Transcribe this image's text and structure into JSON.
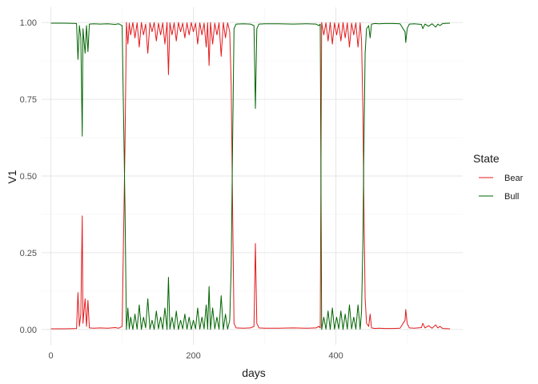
{
  "chart_data": {
    "type": "line",
    "xlabel": "days",
    "ylabel": "V1",
    "xlim": [
      -13,
      578
    ],
    "ylim": [
      -0.05,
      1.05
    ],
    "x_ticks": [
      0,
      200,
      400
    ],
    "x_tick_labels": [
      "0",
      "200",
      "400"
    ],
    "y_ticks": [
      0,
      0.25,
      0.5,
      0.75,
      1
    ],
    "y_tick_labels": [
      "0.00",
      "0.25",
      "0.50",
      "0.75",
      "1.00"
    ],
    "grid": true,
    "legend": {
      "title": "State",
      "position": "right",
      "entries": [
        {
          "label": "Bear",
          "color": "#e31a1c"
        },
        {
          "label": "Bull",
          "color": "#006400"
        }
      ]
    },
    "series": [
      {
        "name": "Bear",
        "color": "#e31a1c",
        "points": [
          [
            0,
            0.002
          ],
          [
            20,
            0.002
          ],
          [
            36,
            0.003
          ],
          [
            38,
            0.12
          ],
          [
            40,
            0.01
          ],
          [
            42,
            0.05
          ],
          [
            44,
            0.37
          ],
          [
            45,
            0.02
          ],
          [
            48,
            0.1
          ],
          [
            50,
            0.01
          ],
          [
            52,
            0.095
          ],
          [
            54,
            0.005
          ],
          [
            60,
            0.004
          ],
          [
            70,
            0.005
          ],
          [
            80,
            0.004
          ],
          [
            90,
            0.006
          ],
          [
            95,
            0.004
          ],
          [
            100,
            0.01
          ],
          [
            104,
            0.6
          ],
          [
            106,
            1.0
          ],
          [
            108,
            0.93
          ],
          [
            110,
            0.998
          ],
          [
            112,
            0.96
          ],
          [
            115,
            1.0
          ],
          [
            118,
            0.95
          ],
          [
            121,
            0.999
          ],
          [
            124,
            0.92
          ],
          [
            127,
            1.0
          ],
          [
            130,
            0.96
          ],
          [
            133,
            0.995
          ],
          [
            136,
            0.9
          ],
          [
            139,
            0.999
          ],
          [
            142,
            0.97
          ],
          [
            145,
            1.0
          ],
          [
            148,
            0.94
          ],
          [
            151,
            0.998
          ],
          [
            154,
            0.96
          ],
          [
            157,
            0.999
          ],
          [
            160,
            0.93
          ],
          [
            163,
            1.0
          ],
          [
            165,
            0.83
          ],
          [
            167,
            0.999
          ],
          [
            170,
            0.96
          ],
          [
            173,
            0.999
          ],
          [
            176,
            0.94
          ],
          [
            179,
            1.0
          ],
          [
            182,
            0.97
          ],
          [
            185,
            0.998
          ],
          [
            188,
            0.95
          ],
          [
            191,
            0.999
          ],
          [
            194,
            0.96
          ],
          [
            197,
            1.0
          ],
          [
            200,
            0.97
          ],
          [
            203,
            0.998
          ],
          [
            206,
            0.93
          ],
          [
            209,
            0.999
          ],
          [
            212,
            0.96
          ],
          [
            215,
            0.998
          ],
          [
            218,
            0.92
          ],
          [
            220,
            0.999
          ],
          [
            222,
            0.86
          ],
          [
            224,
            1.0
          ],
          [
            227,
            0.93
          ],
          [
            230,
            0.998
          ],
          [
            233,
            0.96
          ],
          [
            236,
            0.999
          ],
          [
            239,
            0.89
          ],
          [
            242,
            1.0
          ],
          [
            245,
            0.95
          ],
          [
            248,
            0.999
          ],
          [
            251,
            0.97
          ],
          [
            253,
            0.8
          ],
          [
            255,
            0.4
          ],
          [
            257,
            0.02
          ],
          [
            260,
            0.005
          ],
          [
            270,
            0.004
          ],
          [
            280,
            0.005
          ],
          [
            285,
            0.01
          ],
          [
            287,
            0.28
          ],
          [
            289,
            0.02
          ],
          [
            292,
            0.005
          ],
          [
            300,
            0.004
          ],
          [
            320,
            0.004
          ],
          [
            340,
            0.005
          ],
          [
            360,
            0.004
          ],
          [
            372,
            0.005
          ],
          [
            376,
            0.01
          ],
          [
            378,
            0.005
          ],
          [
            380,
            1.0
          ],
          [
            383,
            0.96
          ],
          [
            386,
            0.999
          ],
          [
            389,
            0.94
          ],
          [
            392,
            1.0
          ],
          [
            395,
            0.93
          ],
          [
            398,
            0.999
          ],
          [
            401,
            0.96
          ],
          [
            404,
            0.998
          ],
          [
            407,
            0.94
          ],
          [
            410,
            1.0
          ],
          [
            413,
            0.95
          ],
          [
            416,
            0.999
          ],
          [
            419,
            0.92
          ],
          [
            422,
            0.998
          ],
          [
            425,
            0.96
          ],
          [
            428,
            0.999
          ],
          [
            431,
            0.92
          ],
          [
            434,
            0.999
          ],
          [
            436,
            0.94
          ],
          [
            438,
            0.7
          ],
          [
            439,
            0.46
          ],
          [
            441,
            0.1
          ],
          [
            443,
            0.02
          ],
          [
            446,
            0.01
          ],
          [
            448,
            0.05
          ],
          [
            450,
            0.005
          ],
          [
            455,
            0.003
          ],
          [
            460,
            0.004
          ],
          [
            470,
            0.003
          ],
          [
            480,
            0.003
          ],
          [
            490,
            0.004
          ],
          [
            497,
            0.03
          ],
          [
            498,
            0.065
          ],
          [
            500,
            0.02
          ],
          [
            503,
            0.005
          ],
          [
            510,
            0.004
          ],
          [
            520,
            0.006
          ],
          [
            522,
            0.02
          ],
          [
            525,
            0.005
          ],
          [
            530,
            0.012
          ],
          [
            535,
            0.004
          ],
          [
            540,
            0.015
          ],
          [
            543,
            0.005
          ],
          [
            546,
            0.01
          ],
          [
            550,
            0.003
          ],
          [
            560,
            0.002
          ]
        ]
      },
      {
        "name": "Bull",
        "color": "#006400",
        "points": [
          [
            0,
            0.998
          ],
          [
            20,
            0.998
          ],
          [
            36,
            0.997
          ],
          [
            38,
            0.88
          ],
          [
            40,
            0.99
          ],
          [
            42,
            0.95
          ],
          [
            44,
            0.63
          ],
          [
            45,
            0.98
          ],
          [
            48,
            0.9
          ],
          [
            50,
            0.99
          ],
          [
            52,
            0.905
          ],
          [
            54,
            0.995
          ],
          [
            60,
            0.996
          ],
          [
            70,
            0.995
          ],
          [
            80,
            0.996
          ],
          [
            90,
            0.994
          ],
          [
            95,
            0.996
          ],
          [
            100,
            0.99
          ],
          [
            104,
            0.4
          ],
          [
            106,
            0.0
          ],
          [
            108,
            0.07
          ],
          [
            110,
            0.002
          ],
          [
            112,
            0.04
          ],
          [
            115,
            0.0
          ],
          [
            118,
            0.05
          ],
          [
            121,
            0.001
          ],
          [
            124,
            0.08
          ],
          [
            127,
            0.0
          ],
          [
            130,
            0.04
          ],
          [
            133,
            0.005
          ],
          [
            136,
            0.1
          ],
          [
            139,
            0.001
          ],
          [
            142,
            0.03
          ],
          [
            145,
            0.0
          ],
          [
            148,
            0.06
          ],
          [
            151,
            0.002
          ],
          [
            154,
            0.04
          ],
          [
            157,
            0.001
          ],
          [
            160,
            0.07
          ],
          [
            163,
            0.0
          ],
          [
            165,
            0.17
          ],
          [
            167,
            0.001
          ],
          [
            170,
            0.04
          ],
          [
            173,
            0.001
          ],
          [
            176,
            0.06
          ],
          [
            179,
            0.0
          ],
          [
            182,
            0.03
          ],
          [
            185,
            0.002
          ],
          [
            188,
            0.05
          ],
          [
            191,
            0.001
          ],
          [
            194,
            0.04
          ],
          [
            197,
            0.0
          ],
          [
            200,
            0.03
          ],
          [
            203,
            0.002
          ],
          [
            206,
            0.07
          ],
          [
            209,
            0.001
          ],
          [
            212,
            0.04
          ],
          [
            215,
            0.002
          ],
          [
            218,
            0.08
          ],
          [
            220,
            0.001
          ],
          [
            222,
            0.14
          ],
          [
            224,
            0.0
          ],
          [
            227,
            0.07
          ],
          [
            230,
            0.002
          ],
          [
            233,
            0.04
          ],
          [
            236,
            0.001
          ],
          [
            239,
            0.11
          ],
          [
            242,
            0.0
          ],
          [
            245,
            0.05
          ],
          [
            248,
            0.001
          ],
          [
            251,
            0.03
          ],
          [
            253,
            0.2
          ],
          [
            255,
            0.6
          ],
          [
            257,
            0.98
          ],
          [
            260,
            0.995
          ],
          [
            270,
            0.996
          ],
          [
            280,
            0.995
          ],
          [
            285,
            0.99
          ],
          [
            287,
            0.72
          ],
          [
            289,
            0.98
          ],
          [
            292,
            0.995
          ],
          [
            300,
            0.996
          ],
          [
            320,
            0.996
          ],
          [
            340,
            0.995
          ],
          [
            360,
            0.996
          ],
          [
            372,
            0.995
          ],
          [
            376,
            0.99
          ],
          [
            378,
            0.995
          ],
          [
            380,
            0.0
          ],
          [
            383,
            0.04
          ],
          [
            386,
            0.001
          ],
          [
            389,
            0.06
          ],
          [
            392,
            0.0
          ],
          [
            395,
            0.07
          ],
          [
            398,
            0.001
          ],
          [
            401,
            0.04
          ],
          [
            404,
            0.002
          ],
          [
            407,
            0.06
          ],
          [
            410,
            0.0
          ],
          [
            413,
            0.05
          ],
          [
            416,
            0.001
          ],
          [
            419,
            0.08
          ],
          [
            422,
            0.002
          ],
          [
            425,
            0.04
          ],
          [
            428,
            0.001
          ],
          [
            431,
            0.08
          ],
          [
            434,
            0.001
          ],
          [
            436,
            0.06
          ],
          [
            438,
            0.3
          ],
          [
            439,
            0.54
          ],
          [
            441,
            0.9
          ],
          [
            443,
            0.98
          ],
          [
            446,
            0.99
          ],
          [
            448,
            0.95
          ],
          [
            450,
            0.995
          ],
          [
            455,
            0.997
          ],
          [
            460,
            0.996
          ],
          [
            470,
            0.997
          ],
          [
            480,
            0.997
          ],
          [
            490,
            0.996
          ],
          [
            497,
            0.97
          ],
          [
            498,
            0.935
          ],
          [
            500,
            0.98
          ],
          [
            503,
            0.995
          ],
          [
            510,
            0.996
          ],
          [
            520,
            0.994
          ],
          [
            522,
            0.98
          ],
          [
            525,
            0.995
          ],
          [
            530,
            0.988
          ],
          [
            535,
            0.996
          ],
          [
            540,
            0.985
          ],
          [
            543,
            0.995
          ],
          [
            546,
            0.99
          ],
          [
            550,
            0.997
          ],
          [
            560,
            0.998
          ]
        ]
      }
    ]
  }
}
